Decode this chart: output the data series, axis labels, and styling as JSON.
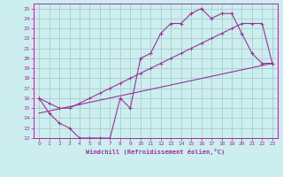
{
  "xlabel": "Windchill (Refroidissement éolien,°C)",
  "bg_color": "#cceeee",
  "grid_color": "#aacccc",
  "line_color": "#993399",
  "xlim": [
    -0.5,
    23.5
  ],
  "ylim": [
    12,
    25.5
  ],
  "xticks": [
    0,
    1,
    2,
    3,
    4,
    5,
    6,
    7,
    8,
    9,
    10,
    11,
    12,
    13,
    14,
    15,
    16,
    17,
    18,
    19,
    20,
    21,
    22,
    23
  ],
  "yticks": [
    12,
    13,
    14,
    15,
    16,
    17,
    18,
    19,
    20,
    21,
    22,
    23,
    24,
    25
  ],
  "line1_x": [
    0,
    1,
    2,
    3,
    4,
    5,
    6,
    7,
    8,
    9,
    10,
    11,
    12,
    13,
    14,
    15,
    16,
    17,
    18,
    19,
    20,
    21,
    22,
    23
  ],
  "line1_y": [
    16,
    14.5,
    13.5,
    13,
    12,
    12,
    12,
    12,
    16,
    15,
    20,
    20.5,
    22.5,
    23.5,
    23.5,
    24.5,
    25,
    24,
    24.5,
    24.5,
    22.5,
    20.5,
    19.5,
    19.5
  ],
  "line2_x": [
    0,
    1,
    2,
    3,
    4,
    5,
    6,
    7,
    8,
    9,
    10,
    11,
    12,
    13,
    14,
    15,
    16,
    17,
    18,
    19,
    20,
    21,
    22,
    23
  ],
  "line2_y": [
    16,
    15.5,
    15,
    15,
    15.5,
    16,
    16.5,
    17,
    17.5,
    18,
    18.5,
    19,
    19.5,
    20,
    20.5,
    21,
    21.5,
    22,
    22.5,
    23,
    23.5,
    23.5,
    23.5,
    19.5
  ],
  "line3_x": [
    0,
    23
  ],
  "line3_y": [
    14.5,
    19.5
  ]
}
